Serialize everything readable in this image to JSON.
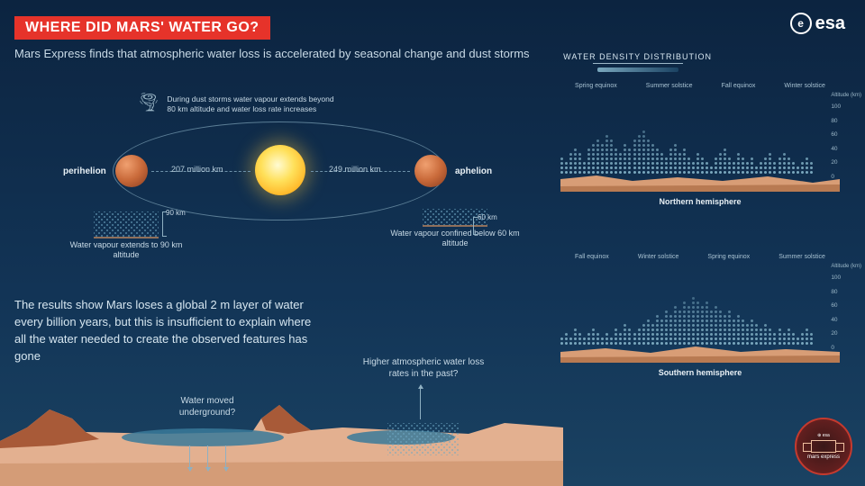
{
  "header": {
    "title": "WHERE DID MARS' WATER GO?",
    "subtitle": "Mars Express finds that atmospheric water loss is accelerated by seasonal change and dust storms",
    "logo_text": "esa",
    "logo_initial": "e",
    "title_bg": "#e6332a",
    "title_color": "#ffffff"
  },
  "orbit": {
    "perihelion_label": "perihelion",
    "aphelion_label": "aphelion",
    "perihelion_distance": "207 million km",
    "aphelion_distance": "249 million km",
    "dust_note": "During dust storms water vapour extends beyond 80 km altitude and water loss rate increases",
    "vapour_left_height": "90 km",
    "vapour_left_text": "Water vapour extends to 90 km altitude",
    "vapour_right_height": "60 km",
    "vapour_right_text": "Water vapour confined below 60 km altitude",
    "ellipse_color": "#5a7d95",
    "mars_color": "#c96a3a",
    "sun_core": "#fffbd2",
    "sun_outer": "#ff8c1a"
  },
  "results": {
    "text": "The results show Mars loses a global 2 m layer of water every billion years, but this is insufficient to explain where all the water needed to create the observed features has gone",
    "underground_q": "Water moved underground?",
    "pastrates_q": "Higher atmospheric water loss rates in the past?"
  },
  "surface": {
    "sand_color": "#e3b090",
    "sand_dark": "#c98f68",
    "rock_color": "#a85a38",
    "water_color": "#3a7a9a"
  },
  "density": {
    "title": "WATER DENSITY DISTRIBUTION",
    "axis_label": "Altitude (km)",
    "ticks": [
      "100",
      "80",
      "60",
      "40",
      "20",
      "0"
    ],
    "dot_color": "#7aa8be",
    "gradient_from": "#7aa8be",
    "gradient_to": "#1a4262",
    "north": {
      "caption": "Northern hemisphere",
      "seasons": [
        "Spring equinox",
        "Summer solstice",
        "Fall equinox",
        "Winter solstice"
      ],
      "columns": [
        4,
        3,
        5,
        6,
        5,
        3,
        6,
        7,
        8,
        7,
        9,
        8,
        6,
        5,
        7,
        6,
        8,
        9,
        10,
        8,
        7,
        6,
        5,
        4,
        6,
        7,
        5,
        6,
        4,
        3,
        5,
        4,
        3,
        2,
        4,
        5,
        6,
        4,
        3,
        5,
        4,
        3,
        4,
        2,
        3,
        4,
        5,
        3,
        4,
        5,
        4,
        3,
        2,
        3,
        4,
        3
      ]
    },
    "south": {
      "caption": "Southern hemisphere",
      "seasons": [
        "Fall equinox",
        "Winter solstice",
        "Spring equinox",
        "Summer solstice"
      ],
      "columns": [
        2,
        3,
        2,
        4,
        3,
        2,
        3,
        4,
        3,
        2,
        3,
        2,
        4,
        3,
        5,
        4,
        3,
        4,
        5,
        6,
        5,
        7,
        6,
        8,
        7,
        9,
        8,
        10,
        9,
        11,
        10,
        9,
        10,
        8,
        9,
        8,
        7,
        8,
        6,
        7,
        6,
        5,
        6,
        5,
        4,
        5,
        4,
        3,
        4,
        3,
        4,
        3,
        2,
        3,
        4,
        3
      ]
    }
  },
  "badge": {
    "text": "mars express",
    "border": "#c53a2e"
  },
  "page": {
    "bg_top": "#0c2440",
    "bg_mid": "#123456",
    "bg_bottom": "#1a4262",
    "text_color": "#e8f0f5",
    "muted": "#c8dae6"
  }
}
